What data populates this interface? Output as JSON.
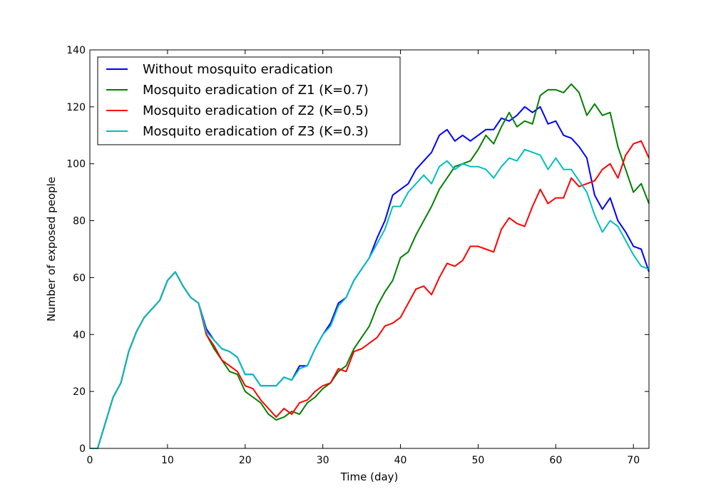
{
  "chart_data": {
    "type": "line",
    "title": "",
    "xlabel": "Time (day)",
    "ylabel": "Number of  exposed people",
    "xlim": [
      0,
      72
    ],
    "ylim": [
      0,
      140
    ],
    "xticks": [
      "0",
      "10",
      "20",
      "30",
      "40",
      "50",
      "60",
      "70"
    ],
    "yticks": [
      "0",
      "20",
      "40",
      "60",
      "80",
      "100",
      "120",
      "140"
    ],
    "grid": false,
    "legend_position": "top-left",
    "x": [
      0,
      1,
      2,
      3,
      4,
      5,
      6,
      7,
      8,
      9,
      10,
      11,
      12,
      13,
      14,
      15,
      16,
      17,
      18,
      19,
      20,
      21,
      22,
      23,
      24,
      25,
      26,
      27,
      28,
      29,
      30,
      31,
      32,
      33,
      34,
      35,
      36,
      37,
      38,
      39,
      40,
      41,
      42,
      43,
      44,
      45,
      46,
      47,
      48,
      49,
      50,
      51,
      52,
      53,
      54,
      55,
      56,
      57,
      58,
      59,
      60,
      61,
      62,
      63,
      64,
      65,
      66,
      67,
      68,
      69,
      70,
      71,
      72
    ],
    "series": [
      {
        "name": "Without mosquito eradication",
        "color": "#0000ff",
        "values": [
          0,
          0,
          9,
          18,
          23,
          34,
          41,
          46,
          49,
          52,
          59,
          62,
          57,
          53,
          51,
          42,
          38,
          35,
          34,
          32,
          26,
          26,
          22,
          22,
          22,
          25,
          24,
          29,
          29,
          35,
          40,
          44,
          51,
          53,
          59,
          63,
          67,
          74,
          80,
          89,
          91,
          93,
          98,
          101,
          104,
          110,
          112,
          108,
          110,
          108,
          110,
          112,
          112,
          116,
          115,
          117,
          120,
          118,
          120,
          114,
          115,
          110,
          109,
          106,
          102,
          89,
          84,
          88,
          80,
          76,
          71,
          70,
          62
        ]
      },
      {
        "name": "Mosquito eradication of Z1 (K=0.7)",
        "color": "#008000",
        "values": [
          0,
          0,
          9,
          18,
          23,
          34,
          41,
          46,
          49,
          52,
          59,
          62,
          57,
          53,
          51,
          40,
          35,
          31,
          27,
          26,
          20,
          18,
          16,
          12,
          10,
          11,
          13,
          12,
          16,
          18,
          21,
          23,
          27,
          29,
          35,
          39,
          43,
          50,
          55,
          59,
          67,
          69,
          75,
          80,
          85,
          91,
          95,
          99,
          100,
          101,
          105,
          110,
          107,
          113,
          118,
          113,
          115,
          114,
          124,
          126,
          126,
          125,
          128,
          125,
          117,
          121,
          117,
          118,
          106,
          98,
          90,
          93,
          86
        ]
      },
      {
        "name": "Mosquito eradication of Z2 (K=0.5)",
        "color": "#ff0000",
        "values": [
          0,
          0,
          9,
          18,
          23,
          34,
          41,
          46,
          49,
          52,
          59,
          62,
          57,
          53,
          51,
          40,
          36,
          31,
          29,
          27,
          22,
          21,
          17,
          14,
          11,
          14,
          12,
          16,
          17,
          20,
          22,
          23,
          28,
          27,
          34,
          35,
          37,
          39,
          43,
          44,
          46,
          51,
          56,
          57,
          54,
          60,
          65,
          64,
          66,
          71,
          71,
          70,
          69,
          77,
          81,
          79,
          78,
          85,
          91,
          86,
          88,
          88,
          95,
          92,
          93,
          94,
          98,
          100,
          95,
          103,
          107,
          108,
          102
        ]
      },
      {
        "name": "Mosquito eradication of Z3 (K=0.3)",
        "color": "#00bfbf",
        "values": [
          0,
          0,
          9,
          18,
          23,
          34,
          41,
          46,
          49,
          52,
          59,
          62,
          57,
          53,
          51,
          41,
          38,
          35,
          34,
          32,
          26,
          26,
          22,
          22,
          22,
          25,
          24,
          28,
          29,
          35,
          40,
          43,
          50,
          53,
          59,
          63,
          67,
          72,
          77,
          85,
          85,
          90,
          93,
          96,
          93,
          99,
          101,
          98,
          100,
          99,
          99,
          98,
          95,
          99,
          102,
          101,
          105,
          104,
          103,
          98,
          102,
          98,
          98,
          94,
          90,
          82,
          76,
          80,
          78,
          73,
          68,
          64,
          63
        ]
      }
    ]
  }
}
